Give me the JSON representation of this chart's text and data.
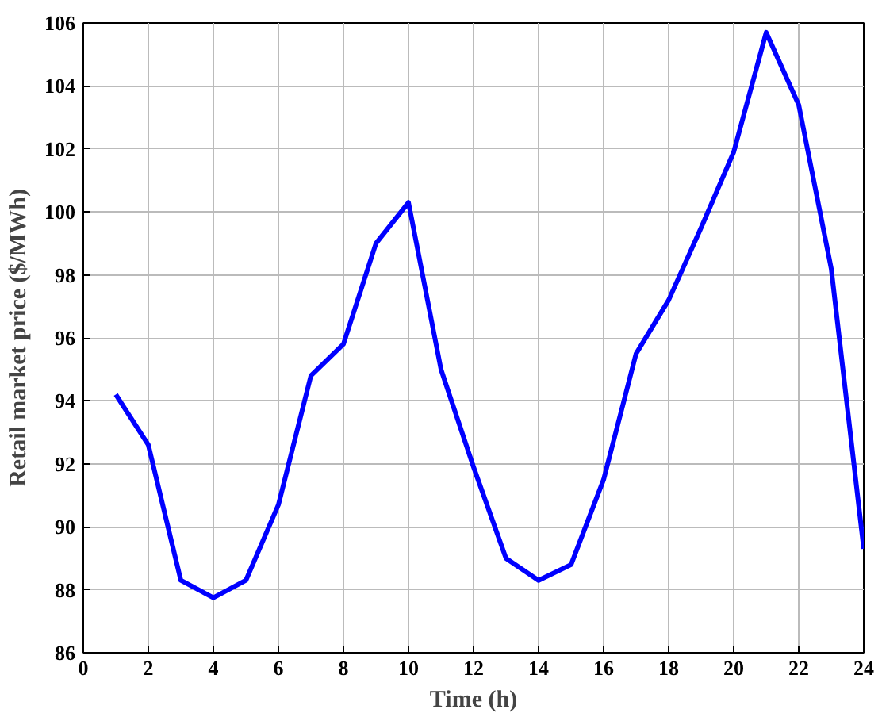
{
  "chart_data": {
    "type": "line",
    "xlabel": "Time (h)",
    "ylabel": "Retail market price ($/MWh)",
    "x": [
      1,
      2,
      3,
      4,
      5,
      6,
      7,
      8,
      9,
      10,
      11,
      12,
      13,
      14,
      15,
      16,
      17,
      18,
      19,
      20,
      21,
      22,
      23,
      24
    ],
    "series": [
      {
        "color": "#0000ff",
        "values": [
          94.2,
          92.6,
          88.3,
          87.75,
          88.3,
          90.7,
          94.8,
          95.8,
          99.0,
          100.3,
          95.0,
          91.9,
          89.0,
          88.3,
          88.8,
          91.5,
          95.5,
          97.2,
          99.5,
          101.9,
          105.7,
          103.4,
          98.2,
          89.3
        ]
      }
    ],
    "xlim": [
      0,
      24
    ],
    "xticks": [
      0,
      2,
      4,
      6,
      8,
      10,
      12,
      14,
      16,
      18,
      20,
      22,
      24
    ],
    "ylim": [
      86,
      106
    ],
    "yticks": [
      86,
      88,
      90,
      92,
      94,
      96,
      98,
      100,
      102,
      104,
      106
    ],
    "grid": true,
    "line_style": "solid",
    "marker": "none"
  }
}
